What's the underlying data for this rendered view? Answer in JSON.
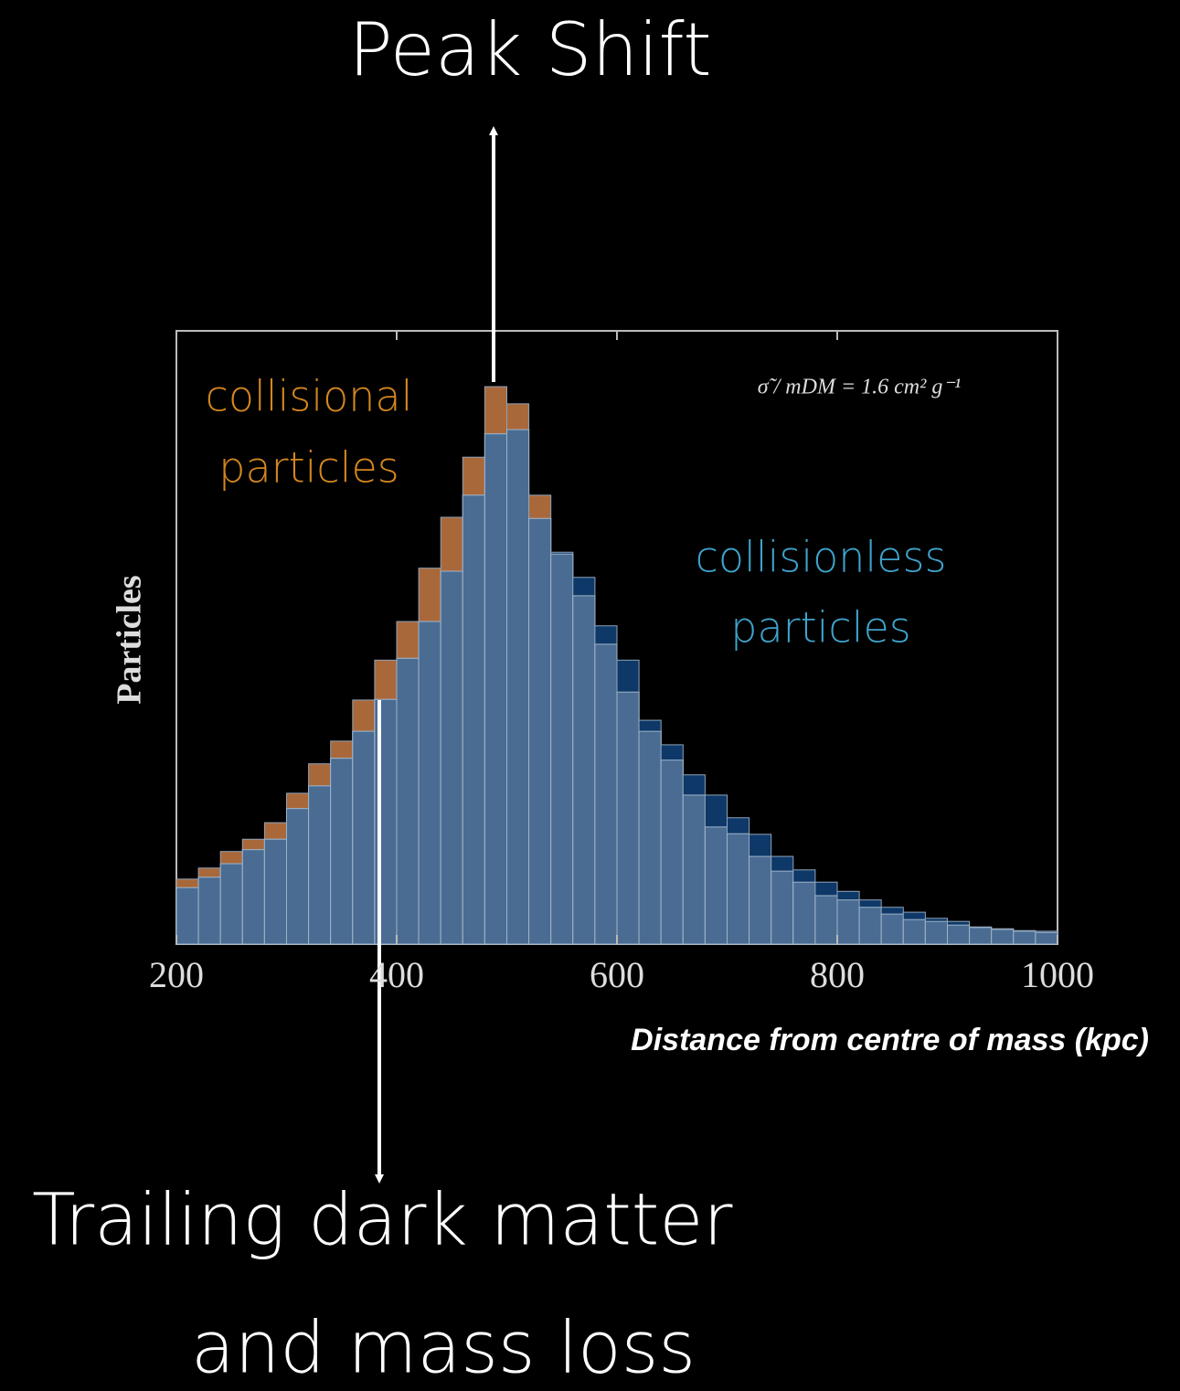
{
  "chart_data": {
    "type": "histogram",
    "title": "Peak Shift",
    "annotations": [
      {
        "lines": [
          "collisional",
          "particles"
        ],
        "color": "#d4871e"
      },
      {
        "lines": [
          "collisionless",
          "particles"
        ],
        "color": "#3ea3cc"
      },
      {
        "lines": [
          "σ̃ / mDM = 1.6  cm² g⁻¹"
        ],
        "color": "#dddddd"
      },
      {
        "lines": [
          "Trailing dark matter",
          "and mass loss"
        ],
        "color": "#ffffff"
      }
    ],
    "x_label": "Distance from centre of mass (kpc)",
    "y_label": "Particles",
    "bins": [
      200,
      220,
      240,
      260,
      280,
      300,
      320,
      340,
      360,
      380,
      400,
      420,
      440,
      460,
      480,
      500,
      520,
      540,
      560,
      580,
      600,
      620,
      640,
      660,
      680,
      700,
      720,
      740,
      760,
      780,
      800,
      820,
      840,
      860,
      880,
      900,
      920,
      940,
      960,
      980,
      1000
    ],
    "series": [
      {
        "name": "collisional particles",
        "color": "#a9683a",
        "values": [
          10.6,
          12.4,
          15.1,
          17.1,
          19.8,
          24.6,
          29.4,
          33.1,
          39.8,
          46.3,
          52.6,
          61.3,
          69.6,
          79.4,
          90.9,
          88.1,
          73.2,
          63.6,
          56.8,
          48.9,
          41.1,
          34.7,
          30.0,
          24.3,
          19.1,
          18.0,
          14.3,
          11.9,
          10.1,
          7.9,
          7.2,
          6.0,
          4.9,
          4.0,
          3.7,
          3.1,
          2.7,
          2.4,
          2.1,
          1.9
        ]
      },
      {
        "name": "collisionless particles",
        "color": "#0d3868",
        "values": [
          9.2,
          10.9,
          13.1,
          15.4,
          17.1,
          22.1,
          25.8,
          30.3,
          34.7,
          39.9,
          46.6,
          52.6,
          60.8,
          73.2,
          83.2,
          83.9,
          69.4,
          63.9,
          59.8,
          51.9,
          46.3,
          36.5,
          32.5,
          27.6,
          24.3,
          20.6,
          17.9,
          14.3,
          12.1,
          10.1,
          8.6,
          7.2,
          6.0,
          5.2,
          4.2,
          3.7,
          2.8,
          2.5,
          2.2,
          2.1
        ]
      }
    ],
    "xlim": [
      200,
      1000
    ],
    "xticks": [
      200,
      400,
      600,
      800,
      1000
    ],
    "ylim": [
      0,
      100
    ]
  }
}
